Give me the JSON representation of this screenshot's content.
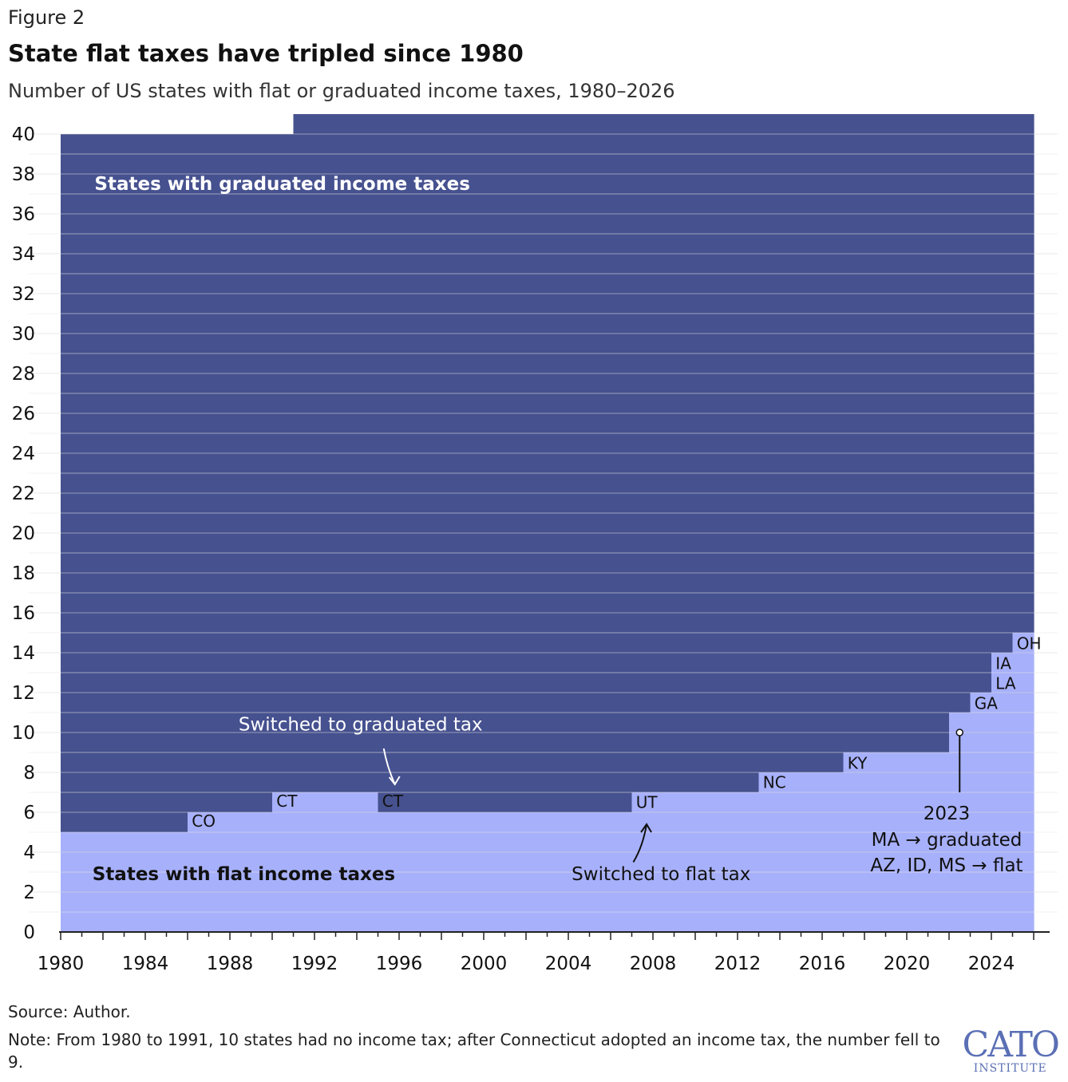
{
  "header": {
    "figure_label": "Figure 2",
    "title": "State flat taxes have tripled since 1980",
    "subtitle": "Number of US states with flat or graduated income taxes, 1980–2026"
  },
  "footer": {
    "source": "Source: Author.",
    "note": "Note: From 1980 to 1991, 10 states had no income tax; after Connecticut adopted an income tax, the number fell to 9.",
    "logo_main": "CATO",
    "logo_sub": "INSTITUTE"
  },
  "colors": {
    "graduated": "#46518f",
    "flat": "#a7b0fa",
    "axis": "#222222",
    "grid": "#5a64a0"
  },
  "chart_data": {
    "type": "area",
    "stacked": true,
    "step": true,
    "x": [
      1980,
      1981,
      1982,
      1983,
      1984,
      1985,
      1986,
      1987,
      1988,
      1989,
      1990,
      1991,
      1992,
      1993,
      1994,
      1995,
      1996,
      1997,
      1998,
      1999,
      2000,
      2001,
      2002,
      2003,
      2004,
      2005,
      2006,
      2007,
      2008,
      2009,
      2010,
      2011,
      2012,
      2013,
      2014,
      2015,
      2016,
      2017,
      2018,
      2019,
      2020,
      2021,
      2022,
      2023,
      2024,
      2025
    ],
    "x_end": 2026,
    "series": [
      {
        "name": "States with flat income taxes",
        "color": "#a7b0fa",
        "values": [
          5,
          5,
          5,
          5,
          5,
          5,
          6,
          6,
          6,
          6,
          7,
          7,
          7,
          7,
          7,
          6,
          6,
          6,
          6,
          6,
          6,
          6,
          6,
          6,
          6,
          6,
          6,
          7,
          7,
          7,
          7,
          7,
          7,
          8,
          8,
          8,
          8,
          9,
          9,
          9,
          9,
          9,
          11,
          12,
          14,
          15
        ]
      },
      {
        "name": "States with graduated income taxes",
        "color": "#46518f",
        "values": [
          35,
          35,
          35,
          35,
          35,
          35,
          34,
          34,
          34,
          34,
          33,
          34,
          34,
          34,
          34,
          35,
          35,
          35,
          35,
          35,
          35,
          35,
          35,
          35,
          35,
          35,
          35,
          34,
          34,
          34,
          34,
          34,
          34,
          33,
          33,
          33,
          33,
          32,
          32,
          32,
          32,
          32,
          30,
          29,
          27,
          26
        ]
      }
    ],
    "ylim": [
      0,
      40
    ],
    "yticks": [
      0,
      2,
      4,
      6,
      8,
      10,
      12,
      14,
      16,
      18,
      20,
      22,
      24,
      26,
      28,
      30,
      32,
      34,
      36,
      38,
      40
    ],
    "xticks": [
      1980,
      1984,
      1988,
      1992,
      1996,
      2000,
      2004,
      2008,
      2012,
      2016,
      2020,
      2024
    ],
    "xlim": [
      1980,
      2026
    ],
    "grid": true,
    "legend": "none",
    "series_labels": [
      {
        "text": "States with graduated income taxes",
        "x": 1981.6,
        "y": 37.2
      },
      {
        "text": "States with flat income taxes",
        "x": 1981.5,
        "y": 2.6
      }
    ],
    "state_labels": [
      {
        "text": "CO",
        "x": 1986.2,
        "y": 5.6
      },
      {
        "text": "CT",
        "x": 1990.2,
        "y": 6.6
      },
      {
        "text": "CT",
        "x": 1995.2,
        "y": 6.6
      },
      {
        "text": "UT",
        "x": 2007.2,
        "y": 6.55
      },
      {
        "text": "NC",
        "x": 2013.2,
        "y": 7.55
      },
      {
        "text": "KY",
        "x": 2017.2,
        "y": 8.5
      },
      {
        "text": "GA",
        "x": 2023.2,
        "y": 11.5
      },
      {
        "text": "LA",
        "x": 2024.2,
        "y": 12.5
      },
      {
        "text": "IA",
        "x": 2024.2,
        "y": 13.5
      },
      {
        "text": "OH",
        "x": 2025.2,
        "y": 14.5
      }
    ],
    "annotations": [
      {
        "text": "Switched to graduated tax",
        "x": 1995.5,
        "y": 10.1,
        "arrow_from": [
          1995.5,
          9.2
        ],
        "arrow_to": [
          1995.8,
          7.4
        ]
      },
      {
        "text": "Switched to flat tax",
        "x": 2006.5,
        "y": 2.6,
        "arrow_from": [
          2007.3,
          3.5
        ],
        "arrow_to": [
          2007.7,
          5.4
        ]
      },
      {
        "text": "2023",
        "x": 2022.0,
        "y": 6.0,
        "lines": [
          "MA → graduated",
          "AZ, ID, MS → flat"
        ],
        "pointer_from": [
          2022.5,
          10.0
        ],
        "pointer_to": [
          2022.5,
          7.0
        ]
      }
    ]
  }
}
